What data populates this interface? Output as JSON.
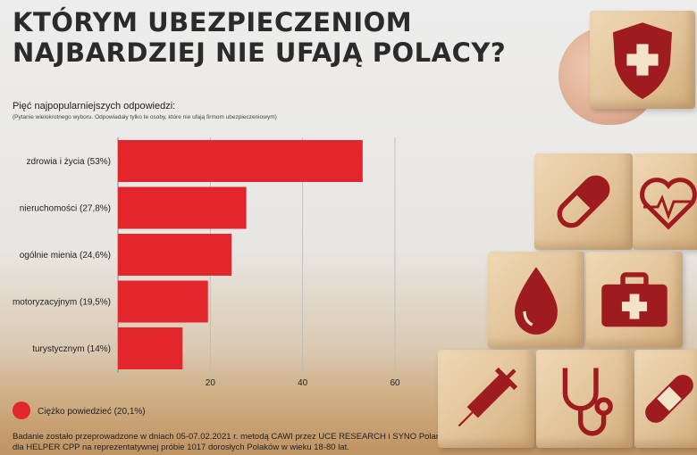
{
  "header": {
    "title_line1": "KTÓRYM UBEZPIECZENIOM",
    "title_line2": "NAJBARDZIEJ NIE UFAJĄ POLACY?",
    "subtitle": "Pięć najpopularniejszych odpowiedzi:",
    "note": "(Pytanie wielokrotnego wyboru. Odpowiadały tylko te osoby, które nie ufają firmom ubezpieczeniowym)"
  },
  "chart_data": {
    "type": "bar",
    "orientation": "horizontal",
    "categories": [
      "zdrowia i życia (53%)",
      "nieruchomości (27,8%)",
      "ogólnie mienia (24,6%)",
      "motoryzacyjnym (19,5%)",
      "turystycznym (14%)"
    ],
    "values": [
      53,
      27.8,
      24.6,
      19.5,
      14
    ],
    "xlim": [
      0,
      60
    ],
    "x_ticks": [
      "20",
      "40",
      "60"
    ],
    "bar_color": "#e3262b",
    "grid": true,
    "legend": {
      "label": "Ciężko powiedzieć (20,1%)",
      "color": "#e3262b",
      "placement": "bottom-left"
    }
  },
  "footer": {
    "line1": "Badanie zostało przeprowadzone w dniach 05-07.02.2021 r. metodą CAWI przez UCE RESEARCH i SYNO Poland",
    "line2": "dla HELPER CPP na reprezentatywnej próbie 1017 dorosłych Polaków w wieku 18-80 lat."
  },
  "photo": {
    "accent": "#9e1b1f",
    "icons": [
      "shield-cross-icon",
      "pill-icon",
      "heartbeat-icon",
      "blood-drop-icon",
      "first-aid-kit-icon",
      "syringe-icon",
      "stethoscope-icon",
      "bandage-icon"
    ]
  }
}
